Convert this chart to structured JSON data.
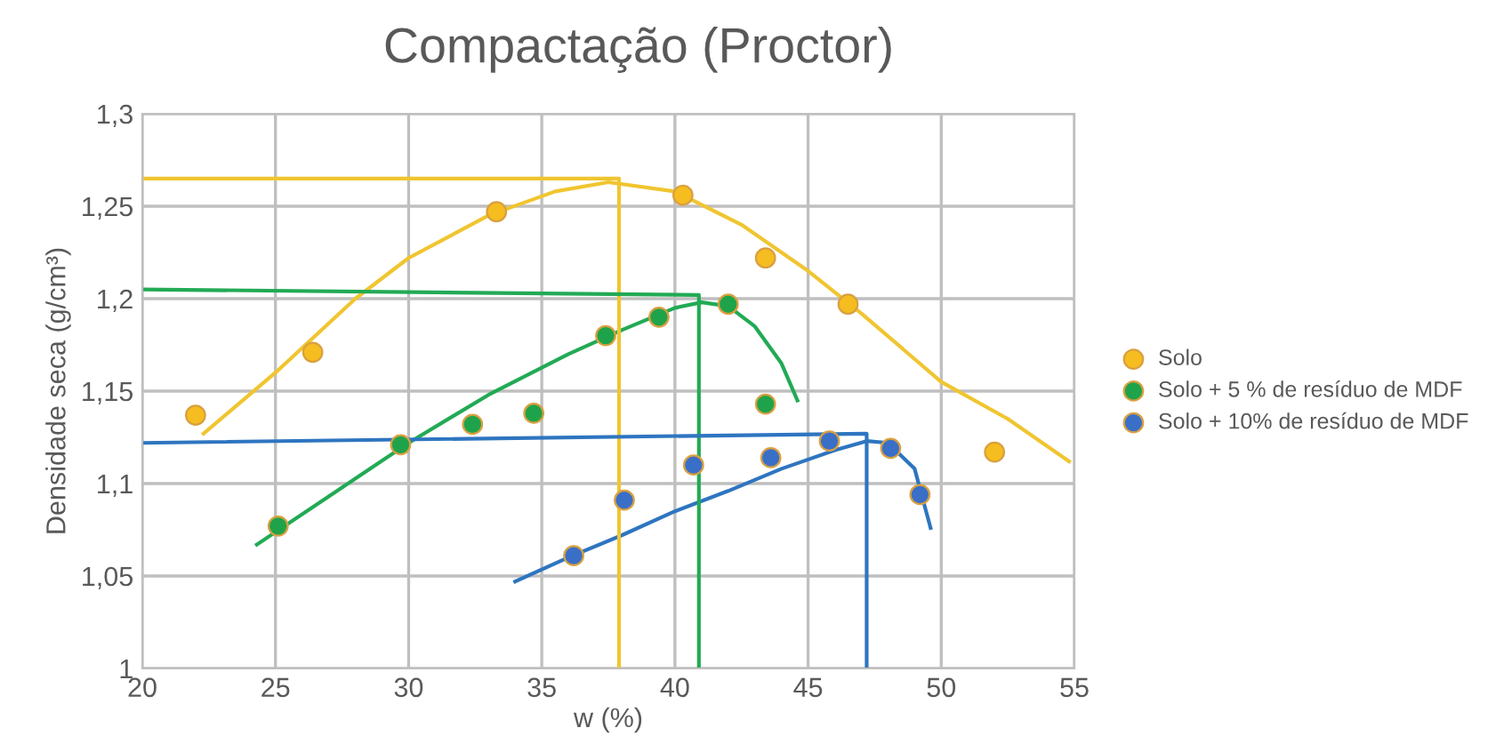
{
  "chart_data": {
    "type": "scatter",
    "title": "Compactação (Proctor)",
    "xlabel": "w (%)",
    "ylabel": "Densidade seca (g/cm³)",
    "xlim": [
      20,
      55
    ],
    "xticks": [
      20,
      25,
      30,
      35,
      40,
      45,
      50,
      55
    ],
    "ylim": [
      1.0,
      1.3
    ],
    "yticks": [
      1,
      {
        "value": 1.05,
        "label": "1,05"
      },
      {
        "value": 1.1,
        "label": "1,1"
      },
      {
        "value": 1.15,
        "label": "1,15"
      },
      {
        "value": 1.2,
        "label": "1,2"
      },
      {
        "value": 1.25,
        "label": "1,25"
      },
      {
        "value": 1.3,
        "label": "1,3"
      }
    ],
    "grid": true,
    "legend": "right",
    "marker": "circle",
    "series": [
      {
        "name": "Solo",
        "color": "#f5bd1f",
        "x": [
          22,
          26.4,
          33.3,
          40.3,
          43.4,
          46.5,
          52
        ],
        "values": [
          1.137,
          1.171,
          1.247,
          1.256,
          1.222,
          1.197,
          1.117
        ]
      },
      {
        "name": "Solo + 5 % de resíduo de MDF",
        "color": "#1fa34a",
        "x": [
          25.1,
          29.7,
          32.4,
          34.7,
          37.4,
          39.4,
          42,
          43.4
        ],
        "values": [
          1.077,
          1.121,
          1.132,
          1.138,
          1.18,
          1.19,
          1.197,
          1.143
        ]
      },
      {
        "name": "Solo + 10% de resíduo de MDF",
        "color": "#3a6fc8",
        "x": [
          36.2,
          38.1,
          40.7,
          43.6,
          45.8,
          48.1,
          49.2
        ],
        "values": [
          1.061,
          1.091,
          1.11,
          1.114,
          1.123,
          1.119,
          1.094
        ]
      },
      {
        "type": "line",
        "marker": "none",
        "color": "#f0c530",
        "x": [
          22.3,
          25,
          28,
          30,
          33,
          35.5,
          37.5,
          40,
          42.5,
          45,
          47,
          50,
          52.5,
          54.8
        ],
        "values": [
          1.127,
          1.16,
          1.2,
          1.222,
          1.245,
          1.258,
          1.263,
          1.258,
          1.24,
          1.215,
          1.192,
          1.155,
          1.135,
          1.112
        ]
      },
      {
        "type": "line",
        "marker": "none",
        "color": "#22aa55",
        "x": [
          24.3,
          27,
          30,
          33,
          36,
          38,
          40,
          41,
          42,
          43,
          44,
          44.6
        ],
        "values": [
          1.067,
          1.093,
          1.122,
          1.148,
          1.17,
          1.183,
          1.195,
          1.198,
          1.196,
          1.185,
          1.165,
          1.145
        ]
      },
      {
        "type": "line",
        "marker": "none",
        "color": "#2e75c0",
        "x": [
          34,
          36,
          38,
          40,
          42,
          44,
          46,
          47.2,
          48,
          49,
          49.6
        ],
        "values": [
          1.047,
          1.06,
          1.072,
          1.085,
          1.096,
          1.108,
          1.118,
          1.123,
          1.122,
          1.108,
          1.076
        ]
      },
      {
        "type": "line",
        "marker": "none",
        "color": "#f0c530",
        "x": [
          20,
          37.9,
          37.9
        ],
        "values": [
          1.265,
          1.265,
          1.0
        ]
      },
      {
        "type": "line",
        "marker": "none",
        "color": "#22aa55",
        "x": [
          20,
          40.9,
          40.9
        ],
        "values": [
          1.205,
          1.202,
          1.0
        ]
      },
      {
        "type": "line",
        "marker": "none",
        "color": "#2e75c0",
        "x": [
          20,
          47.2,
          47.2
        ],
        "values": [
          1.122,
          1.127,
          1.0
        ]
      }
    ]
  }
}
